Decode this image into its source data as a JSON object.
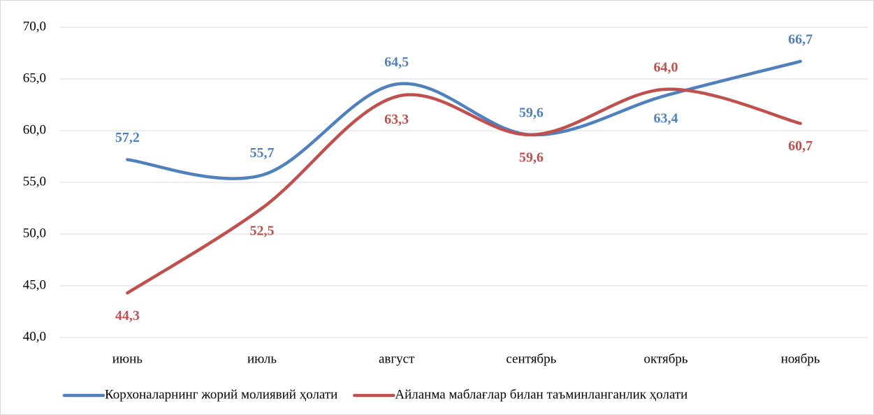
{
  "chart_data": {
    "type": "line",
    "categories": [
      "июнь",
      "июль",
      "август",
      "сентябрь",
      "октябрь",
      "ноябрь"
    ],
    "series": [
      {
        "name": "Корхоналарнинг жорий молиявий ҳолати",
        "color": "#4f81bd",
        "values": [
          57.2,
          55.7,
          64.5,
          59.6,
          63.4,
          66.7
        ],
        "value_labels": [
          "57,2",
          "55,7",
          "64,5",
          "59,6",
          "63,4",
          "66,7"
        ]
      },
      {
        "name": "Айланма маблағлар билан таъминланганлик ҳолати",
        "color": "#c0504d",
        "values": [
          44.3,
          52.5,
          63.3,
          59.6,
          64.0,
          60.7
        ],
        "value_labels": [
          "44,3",
          "52,5",
          "63,3",
          "59,6",
          "64,0",
          "60,7"
        ]
      }
    ],
    "ylim": [
      40,
      70
    ],
    "yticks": [
      {
        "value": 40,
        "label": "40,0"
      },
      {
        "value": 45,
        "label": "45,0"
      },
      {
        "value": 50,
        "label": "50,0"
      },
      {
        "value": 55,
        "label": "55,0"
      },
      {
        "value": 60,
        "label": "60,0"
      },
      {
        "value": 65,
        "label": "65,0"
      },
      {
        "value": 70,
        "label": "70,0"
      }
    ],
    "grid": true,
    "legend": "bottom",
    "smooth": true
  }
}
